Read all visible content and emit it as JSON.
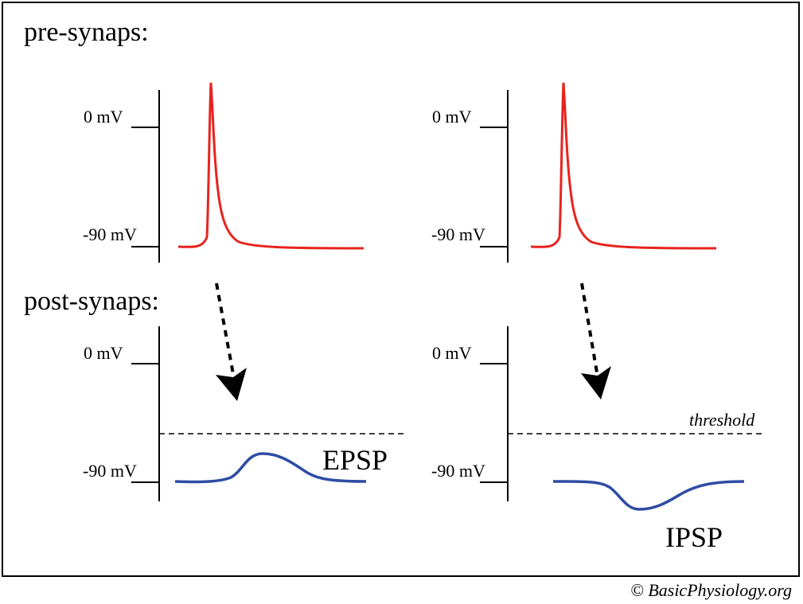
{
  "sections": {
    "pre_title": "pre-synaps:",
    "post_title": "post-synaps:"
  },
  "axis_labels": {
    "zero": "0 mV",
    "rest": "-90 mV"
  },
  "epsp_label": "EPSP",
  "ipsp_label": "IPSP",
  "threshold_label": "threshold",
  "copyright": "© BasicPhysiology.org",
  "colors": {
    "action_potential": "#e8231e",
    "postsynaptic": "#2e4ca3",
    "axes": "#000000"
  }
}
